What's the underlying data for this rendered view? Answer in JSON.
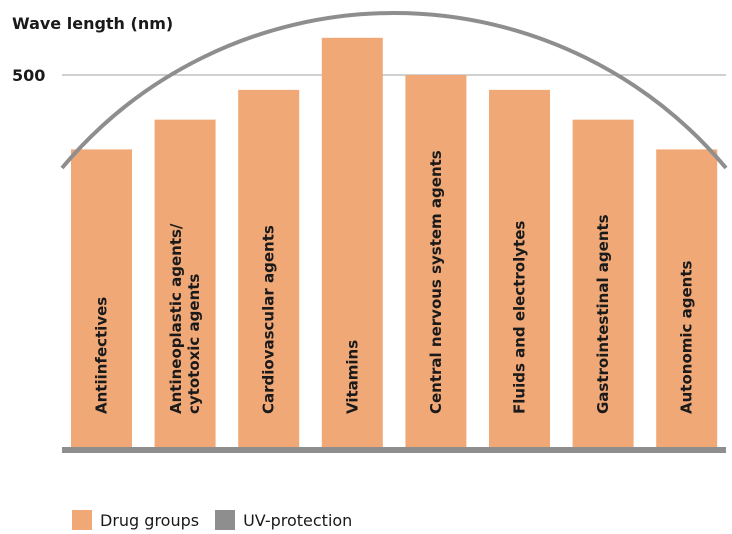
{
  "chart_data": {
    "type": "bar",
    "ylabel": "Wave length (nm)",
    "yticks": [
      500
    ],
    "categories": [
      "Antiinfectives",
      "Antineoplastic agents/\ncytotoxic agents",
      "Cardiovascular agents",
      "Vitamins",
      "Central nervous system agents",
      "Fluids and electrolytes",
      "Gastrointestinal agents",
      "Autonomic agents"
    ],
    "series": [
      {
        "name": "Drug groups",
        "values": [
          400,
          440,
          480,
          550,
          500,
          480,
          440,
          400
        ]
      }
    ],
    "overlay": {
      "name": "UV-protection",
      "shape": "arc"
    },
    "ylim": [
      0,
      560
    ]
  },
  "legend": {
    "items": [
      {
        "label": "Drug groups",
        "color": "#f0a877"
      },
      {
        "label": "UV-protection",
        "color": "#8e8e8e"
      }
    ]
  },
  "colors": {
    "bar": "#f0a877",
    "uv": "#8e8e8e",
    "axis": "#8e8e8e",
    "grid": "#b5b5b5"
  }
}
